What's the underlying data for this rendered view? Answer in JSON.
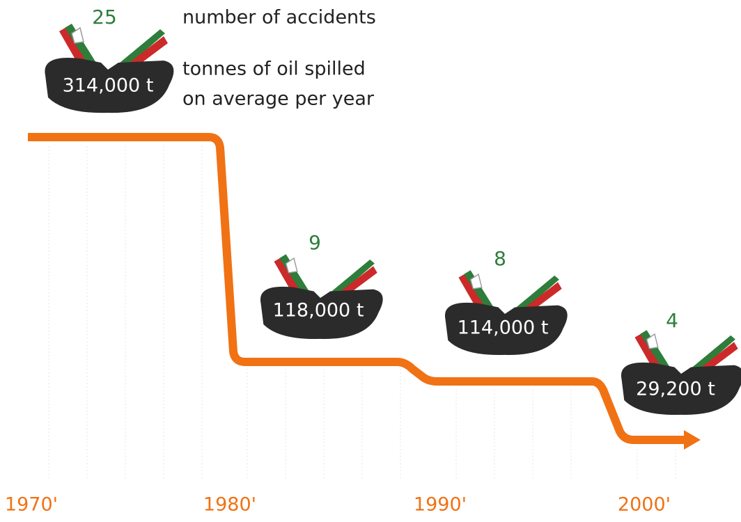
{
  "legend": {
    "accidents": "number of accidents",
    "tonnes_line1": "tonnes of oil spilled",
    "tonnes_line2": "on average per year"
  },
  "periods": [
    {
      "label": "1970'",
      "accidents": "25",
      "tonnes": "314,000 t"
    },
    {
      "label": "1980'",
      "accidents": "9",
      "tonnes": "118,000 t"
    },
    {
      "label": "1990'",
      "accidents": "8",
      "tonnes": "114,000 t"
    },
    {
      "label": "2000'",
      "accidents": "4",
      "tonnes": "29,200 t"
    }
  ]
}
